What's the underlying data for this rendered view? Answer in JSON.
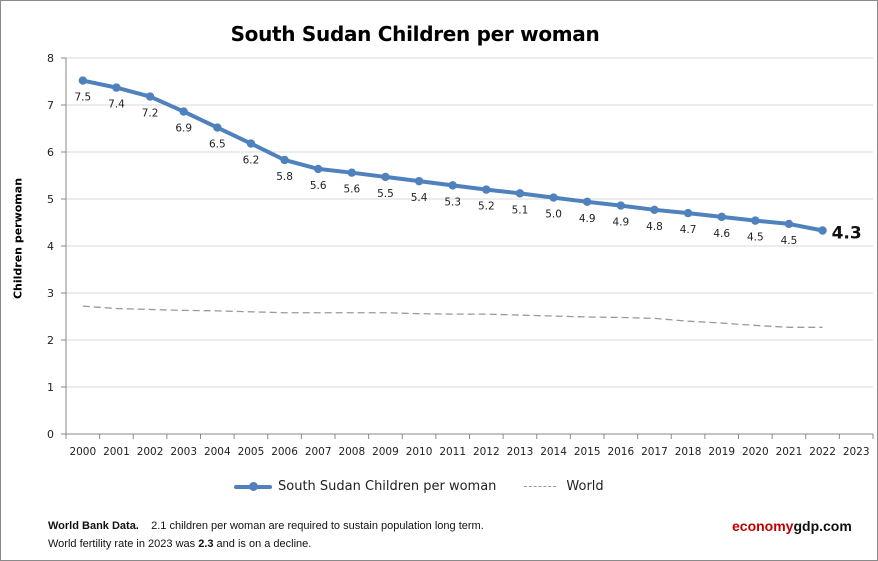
{
  "chart_data": {
    "type": "line",
    "title": "South Sudan Children per woman",
    "xlabel": "",
    "ylabel": "Children perwoman",
    "ylim": [
      0,
      8
    ],
    "yticks": [
      0,
      1,
      2,
      3,
      4,
      5,
      6,
      7,
      8
    ],
    "grid": true,
    "legend_position": "bottom",
    "categories": [
      "2000",
      "2001",
      "2002",
      "2003",
      "2004",
      "2005",
      "2006",
      "2007",
      "2008",
      "2009",
      "2010",
      "2011",
      "2012",
      "2013",
      "2014",
      "2015",
      "2016",
      "2017",
      "2018",
      "2019",
      "2020",
      "2021",
      "2022",
      "2023"
    ],
    "series": [
      {
        "name": "South Sudan Children per woman",
        "color": "#4f81bd",
        "style": "solid-markers",
        "values": [
          7.52,
          7.37,
          7.18,
          6.86,
          6.52,
          6.18,
          5.83,
          5.64,
          5.56,
          5.47,
          5.38,
          5.29,
          5.2,
          5.12,
          5.03,
          4.94,
          4.86,
          4.77,
          4.7,
          4.62,
          4.54,
          4.47,
          4.33,
          null
        ],
        "labels": [
          "7.5",
          "7.4",
          "7.2",
          "6.9",
          "6.5",
          "6.2",
          "5.8",
          "5.6",
          "5.6",
          "5.5",
          "5.4",
          "5.3",
          "5.2",
          "5.1",
          "5.0",
          "4.9",
          "4.9",
          "4.8",
          "4.7",
          "4.6",
          "4.5",
          "4.5",
          "4.3",
          ""
        ]
      },
      {
        "name": "World",
        "color": "#9a9a9a",
        "style": "dashed",
        "values": [
          2.72,
          2.67,
          2.65,
          2.63,
          2.62,
          2.6,
          2.58,
          2.58,
          2.58,
          2.58,
          2.56,
          2.55,
          2.55,
          2.53,
          2.51,
          2.49,
          2.48,
          2.46,
          2.4,
          2.36,
          2.31,
          2.27,
          2.27,
          null
        ]
      }
    ]
  },
  "footer": {
    "source_label": "World Bank Data.",
    "note_line1": "2.1 children per woman  are required to sustain population long term.",
    "note_line2_pre": "World fertility rate in 2023 was ",
    "note_line2_bold": "2.3",
    "note_line2_post": " and is on a decline.",
    "brand_part1": "economy",
    "brand_part2": "gdp.com",
    "brand_color": "#c00000"
  }
}
